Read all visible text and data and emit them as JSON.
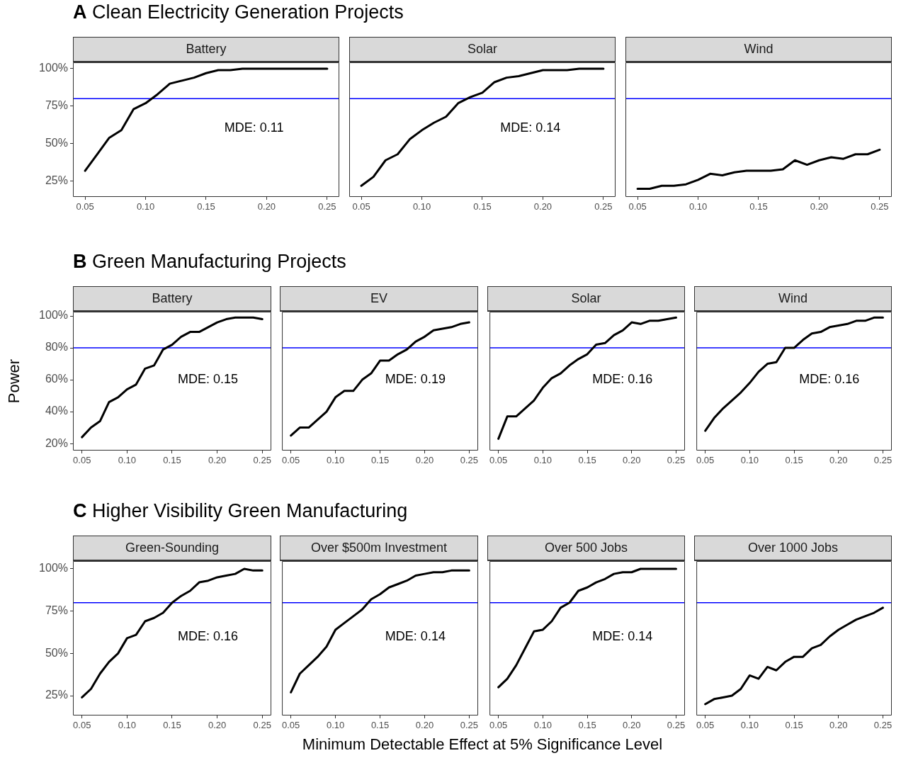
{
  "chart_data": [
    {
      "type": "line",
      "title": "A Clean Electricity Generation Projects",
      "subtitle": "Battery",
      "color": "#000000",
      "x": [
        0.05,
        0.06,
        0.07,
        0.08,
        0.09,
        0.1,
        0.11,
        0.12,
        0.13,
        0.14,
        0.15,
        0.16,
        0.17,
        0.18,
        0.19,
        0.2,
        0.21,
        0.22,
        0.23,
        0.24,
        0.25
      ],
      "values": [
        32,
        43,
        54,
        59,
        73,
        77,
        83,
        90,
        92,
        94,
        97,
        99,
        99,
        100,
        100,
        100,
        100,
        100,
        100,
        100,
        100
      ],
      "xlim": [
        0.04,
        0.26
      ],
      "xticks": [
        {
          "value": 0.05,
          "label": "0.05"
        },
        {
          "value": 0.1,
          "label": "0.10"
        },
        {
          "value": 0.15,
          "label": "0.15"
        },
        {
          "value": 0.2,
          "label": "0.20"
        },
        {
          "value": 0.25,
          "label": "0.25"
        }
      ],
      "ylim": [
        14.6,
        104.2
      ],
      "yticks": [
        {
          "value": 25,
          "label": "25%"
        },
        {
          "value": 50,
          "label": "50%"
        },
        {
          "value": 75,
          "label": "75%"
        },
        {
          "value": 100,
          "label": "100%"
        }
      ],
      "ref_lines": [
        {
          "axis": "y",
          "value": 80,
          "color": "#0000ff"
        }
      ],
      "annotations": [
        "MDE: 0.11"
      ]
    },
    {
      "type": "line",
      "subtitle": "Solar",
      "color": "#000000",
      "x": [
        0.05,
        0.06,
        0.07,
        0.08,
        0.09,
        0.1,
        0.11,
        0.12,
        0.13,
        0.14,
        0.15,
        0.16,
        0.17,
        0.18,
        0.19,
        0.2,
        0.21,
        0.22,
        0.23,
        0.24,
        0.25
      ],
      "values": [
        22,
        28,
        39,
        43,
        53,
        59,
        64,
        68,
        77,
        81,
        84,
        91,
        94,
        95,
        97,
        99,
        99,
        99,
        100,
        100,
        100
      ],
      "xlim": [
        0.04,
        0.26
      ],
      "xticks": [
        {
          "value": 0.05,
          "label": "0.05"
        },
        {
          "value": 0.1,
          "label": "0.10"
        },
        {
          "value": 0.15,
          "label": "0.15"
        },
        {
          "value": 0.2,
          "label": "0.20"
        },
        {
          "value": 0.25,
          "label": "0.25"
        }
      ],
      "ylim": [
        14.6,
        104.2
      ],
      "tick_labels": "x",
      "ref_lines": [
        {
          "axis": "y",
          "value": 80,
          "color": "#0000ff"
        }
      ],
      "annotations": [
        "MDE: 0.14"
      ]
    },
    {
      "type": "line",
      "subtitle": "Wind",
      "color": "#000000",
      "x": [
        0.05,
        0.06,
        0.07,
        0.08,
        0.09,
        0.1,
        0.11,
        0.12,
        0.13,
        0.14,
        0.15,
        0.16,
        0.17,
        0.18,
        0.19,
        0.2,
        0.21,
        0.22,
        0.23,
        0.24,
        0.25
      ],
      "values": [
        20,
        20,
        22,
        22,
        23,
        26,
        30,
        29,
        31,
        32,
        32,
        32,
        33,
        39,
        36,
        39,
        41,
        40,
        43,
        43,
        46
      ],
      "xlim": [
        0.04,
        0.26
      ],
      "xticks": [
        {
          "value": 0.05,
          "label": "0.05"
        },
        {
          "value": 0.1,
          "label": "0.10"
        },
        {
          "value": 0.15,
          "label": "0.15"
        },
        {
          "value": 0.2,
          "label": "0.20"
        },
        {
          "value": 0.25,
          "label": "0.25"
        }
      ],
      "ylim": [
        14.6,
        104.2
      ],
      "tick_labels": "x",
      "ref_lines": [
        {
          "axis": "y",
          "value": 80,
          "color": "#0000ff"
        }
      ]
    },
    {
      "type": "line",
      "title": "B Green Manufacturing Projects",
      "subtitle": "Battery",
      "ylabel": "Power",
      "color": "#000000",
      "x": [
        0.05,
        0.06,
        0.07,
        0.08,
        0.09,
        0.1,
        0.11,
        0.12,
        0.13,
        0.14,
        0.15,
        0.16,
        0.17,
        0.18,
        0.19,
        0.2,
        0.21,
        0.22,
        0.23,
        0.24,
        0.25
      ],
      "values": [
        24,
        30,
        34,
        46,
        49,
        54,
        57,
        67,
        69,
        79,
        82,
        87,
        90,
        90,
        93,
        96,
        98,
        99,
        99,
        99,
        98
      ],
      "xlim": [
        0.04,
        0.26
      ],
      "xticks": [
        {
          "value": 0.05,
          "label": "0.05"
        },
        {
          "value": 0.1,
          "label": "0.10"
        },
        {
          "value": 0.15,
          "label": "0.15"
        },
        {
          "value": 0.2,
          "label": "0.20"
        },
        {
          "value": 0.25,
          "label": "0.25"
        }
      ],
      "ylim": [
        15.6,
        102.7
      ],
      "yticks": [
        {
          "value": 20,
          "label": "20%"
        },
        {
          "value": 40,
          "label": "40%"
        },
        {
          "value": 60,
          "label": "60%"
        },
        {
          "value": 80,
          "label": "80%"
        },
        {
          "value": 100,
          "label": "100%"
        }
      ],
      "ref_lines": [
        {
          "axis": "y",
          "value": 80,
          "color": "#0000ff"
        }
      ],
      "annotations": [
        "MDE: 0.15"
      ]
    },
    {
      "type": "line",
      "subtitle": "EV",
      "color": "#000000",
      "x": [
        0.05,
        0.06,
        0.07,
        0.08,
        0.09,
        0.1,
        0.11,
        0.12,
        0.13,
        0.14,
        0.15,
        0.16,
        0.17,
        0.18,
        0.19,
        0.2,
        0.21,
        0.22,
        0.23,
        0.24,
        0.25
      ],
      "values": [
        25,
        30,
        30,
        35,
        40,
        49,
        53,
        53,
        60,
        64,
        72,
        72,
        76,
        79,
        84,
        87,
        91,
        92,
        93,
        95,
        96
      ],
      "xlim": [
        0.04,
        0.26
      ],
      "xticks": [
        {
          "value": 0.05,
          "label": "0.05"
        },
        {
          "value": 0.1,
          "label": "0.10"
        },
        {
          "value": 0.15,
          "label": "0.15"
        },
        {
          "value": 0.2,
          "label": "0.20"
        },
        {
          "value": 0.25,
          "label": "0.25"
        }
      ],
      "ylim": [
        15.6,
        102.7
      ],
      "tick_labels": "x",
      "ref_lines": [
        {
          "axis": "y",
          "value": 80,
          "color": "#0000ff"
        }
      ],
      "annotations": [
        "MDE: 0.19"
      ]
    },
    {
      "type": "line",
      "subtitle": "Solar",
      "color": "#000000",
      "x": [
        0.05,
        0.06,
        0.07,
        0.08,
        0.09,
        0.1,
        0.11,
        0.12,
        0.13,
        0.14,
        0.15,
        0.16,
        0.17,
        0.18,
        0.19,
        0.2,
        0.21,
        0.22,
        0.23,
        0.24,
        0.25
      ],
      "values": [
        23,
        37,
        37,
        42,
        47,
        55,
        61,
        64,
        69,
        73,
        76,
        82,
        83,
        88,
        91,
        96,
        95,
        97,
        97,
        98,
        99
      ],
      "xlim": [
        0.04,
        0.26
      ],
      "xticks": [
        {
          "value": 0.05,
          "label": "0.05"
        },
        {
          "value": 0.1,
          "label": "0.10"
        },
        {
          "value": 0.15,
          "label": "0.15"
        },
        {
          "value": 0.2,
          "label": "0.20"
        },
        {
          "value": 0.25,
          "label": "0.25"
        }
      ],
      "ylim": [
        15.6,
        102.7
      ],
      "tick_labels": "x",
      "ref_lines": [
        {
          "axis": "y",
          "value": 80,
          "color": "#0000ff"
        }
      ],
      "annotations": [
        "MDE: 0.16"
      ]
    },
    {
      "type": "line",
      "subtitle": "Wind",
      "color": "#000000",
      "x": [
        0.05,
        0.06,
        0.07,
        0.08,
        0.09,
        0.1,
        0.11,
        0.12,
        0.13,
        0.14,
        0.15,
        0.16,
        0.17,
        0.18,
        0.19,
        0.2,
        0.21,
        0.22,
        0.23,
        0.24,
        0.25
      ],
      "values": [
        28,
        36,
        42,
        47,
        52,
        58,
        65,
        70,
        71,
        80,
        80,
        85,
        89,
        90,
        93,
        94,
        95,
        97,
        97,
        99,
        99
      ],
      "xlim": [
        0.04,
        0.26
      ],
      "xticks": [
        {
          "value": 0.05,
          "label": "0.05"
        },
        {
          "value": 0.1,
          "label": "0.10"
        },
        {
          "value": 0.15,
          "label": "0.15"
        },
        {
          "value": 0.2,
          "label": "0.20"
        },
        {
          "value": 0.25,
          "label": "0.25"
        }
      ],
      "ylim": [
        15.6,
        102.7
      ],
      "tick_labels": "x",
      "ref_lines": [
        {
          "axis": "y",
          "value": 80,
          "color": "#0000ff"
        }
      ],
      "annotations": [
        "MDE: 0.16"
      ]
    },
    {
      "type": "line",
      "title": "C Higher Visibility Green Manufacturing",
      "subtitle": "Green-Sounding",
      "xlabel": "Minimum Detectable Effect at 5% Significance Level",
      "color": "#000000",
      "x": [
        0.05,
        0.06,
        0.07,
        0.08,
        0.09,
        0.1,
        0.11,
        0.12,
        0.13,
        0.14,
        0.15,
        0.16,
        0.17,
        0.18,
        0.19,
        0.2,
        0.21,
        0.22,
        0.23,
        0.24,
        0.25
      ],
      "values": [
        24,
        29,
        38,
        45,
        50,
        59,
        61,
        69,
        71,
        74,
        80,
        84,
        87,
        92,
        93,
        95,
        96,
        97,
        100,
        99,
        99
      ],
      "xlim": [
        0.04,
        0.26
      ],
      "xticks": [
        {
          "value": 0.05,
          "label": "0.05"
        },
        {
          "value": 0.1,
          "label": "0.10"
        },
        {
          "value": 0.15,
          "label": "0.15"
        },
        {
          "value": 0.2,
          "label": "0.20"
        },
        {
          "value": 0.25,
          "label": "0.25"
        }
      ],
      "ylim": [
        13.3,
        104.6
      ],
      "yticks": [
        {
          "value": 25,
          "label": "25%"
        },
        {
          "value": 50,
          "label": "50%"
        },
        {
          "value": 75,
          "label": "75%"
        },
        {
          "value": 100,
          "label": "100%"
        }
      ],
      "ref_lines": [
        {
          "axis": "y",
          "value": 80,
          "color": "#0000ff"
        }
      ],
      "annotations": [
        "MDE: 0.16"
      ]
    },
    {
      "type": "line",
      "subtitle": "Over $500m Investment",
      "color": "#000000",
      "x": [
        0.05,
        0.06,
        0.07,
        0.08,
        0.09,
        0.1,
        0.11,
        0.12,
        0.13,
        0.14,
        0.15,
        0.16,
        0.17,
        0.18,
        0.19,
        0.2,
        0.21,
        0.22,
        0.23,
        0.24,
        0.25
      ],
      "values": [
        27,
        38,
        43,
        48,
        54,
        64,
        68,
        72,
        76,
        82,
        85,
        89,
        91,
        93,
        96,
        97,
        98,
        98,
        99,
        99,
        99
      ],
      "xlim": [
        0.04,
        0.26
      ],
      "xticks": [
        {
          "value": 0.05,
          "label": "0.05"
        },
        {
          "value": 0.1,
          "label": "0.10"
        },
        {
          "value": 0.15,
          "label": "0.15"
        },
        {
          "value": 0.2,
          "label": "0.20"
        },
        {
          "value": 0.25,
          "label": "0.25"
        }
      ],
      "ylim": [
        13.3,
        104.6
      ],
      "tick_labels": "x",
      "ref_lines": [
        {
          "axis": "y",
          "value": 80,
          "color": "#0000ff"
        }
      ],
      "annotations": [
        "MDE: 0.14"
      ]
    },
    {
      "type": "line",
      "subtitle": "Over 500 Jobs",
      "color": "#000000",
      "x": [
        0.05,
        0.06,
        0.07,
        0.08,
        0.09,
        0.1,
        0.11,
        0.12,
        0.13,
        0.14,
        0.15,
        0.16,
        0.17,
        0.18,
        0.19,
        0.2,
        0.21,
        0.22,
        0.23,
        0.24,
        0.25
      ],
      "values": [
        30,
        35,
        43,
        53,
        63,
        64,
        69,
        77,
        80,
        87,
        89,
        92,
        94,
        97,
        98,
        98,
        100,
        100,
        100,
        100,
        100
      ],
      "xlim": [
        0.04,
        0.26
      ],
      "xticks": [
        {
          "value": 0.05,
          "label": "0.05"
        },
        {
          "value": 0.1,
          "label": "0.10"
        },
        {
          "value": 0.15,
          "label": "0.15"
        },
        {
          "value": 0.2,
          "label": "0.20"
        },
        {
          "value": 0.25,
          "label": "0.25"
        }
      ],
      "ylim": [
        13.3,
        104.6
      ],
      "tick_labels": "x",
      "ref_lines": [
        {
          "axis": "y",
          "value": 80,
          "color": "#0000ff"
        }
      ],
      "annotations": [
        "MDE: 0.14"
      ]
    },
    {
      "type": "line",
      "subtitle": "Over 1000 Jobs",
      "color": "#000000",
      "x": [
        0.05,
        0.06,
        0.07,
        0.08,
        0.09,
        0.1,
        0.11,
        0.12,
        0.13,
        0.14,
        0.15,
        0.16,
        0.17,
        0.18,
        0.19,
        0.2,
        0.21,
        0.22,
        0.23,
        0.24,
        0.25
      ],
      "values": [
        20,
        23,
        24,
        25,
        29,
        37,
        35,
        42,
        40,
        45,
        48,
        48,
        53,
        55,
        60,
        64,
        67,
        70,
        72,
        74,
        77
      ],
      "xlim": [
        0.04,
        0.26
      ],
      "xticks": [
        {
          "value": 0.05,
          "label": "0.05"
        },
        {
          "value": 0.1,
          "label": "0.10"
        },
        {
          "value": 0.15,
          "label": "0.15"
        },
        {
          "value": 0.2,
          "label": "0.20"
        },
        {
          "value": 0.25,
          "label": "0.25"
        }
      ],
      "ylim": [
        13.3,
        104.6
      ],
      "tick_labels": "x",
      "ref_lines": [
        {
          "axis": "y",
          "value": 80,
          "color": "#0000ff"
        }
      ]
    }
  ]
}
